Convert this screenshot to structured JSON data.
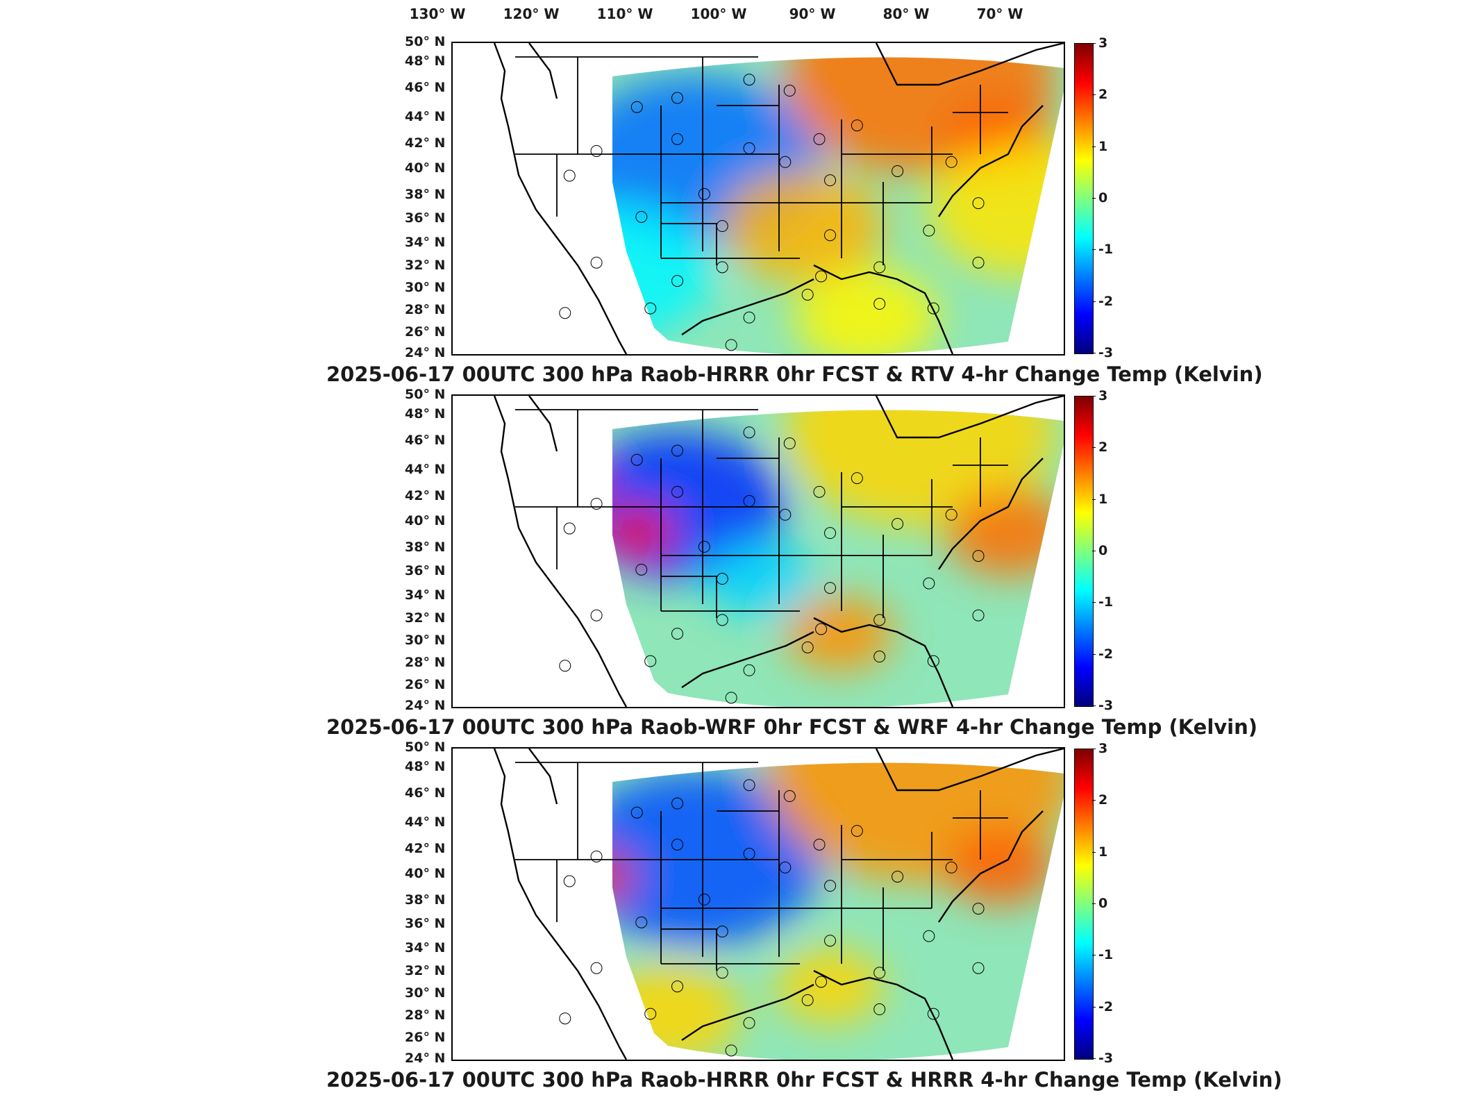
{
  "longitude_labels": [
    "130° W",
    "120° W",
    "110° W",
    "100° W",
    "90° W",
    "80° W",
    "70° W"
  ],
  "latitude_labels": [
    "50° N",
    "48° N",
    "46° N",
    "44° N",
    "42° N",
    "40° N",
    "38° N",
    "36° N",
    "34° N",
    "32° N",
    "30° N",
    "28° N",
    "26° N",
    "24° N"
  ],
  "colorbar": {
    "ticks": [
      "3",
      "2",
      "1",
      "0",
      "-1",
      "-2",
      "-3"
    ],
    "min": -3,
    "max": 3,
    "units": "Kelvin",
    "colormap": "jet"
  },
  "panels": [
    {
      "title": "2025-06-17 00UTC 300 hPa Raob-HRRR 0hr FCST & RTV 4-hr Change Temp (Kelvin)"
    },
    {
      "title": "2025-06-17 00UTC 300 hPa Raob-WRF 0hr FCST & WRF 4-hr Change Temp (Kelvin)"
    },
    {
      "title": "2025-06-17 00UTC 300 hPa Raob-HRRR 0hr FCST & HRRR 4-hr Change Temp (Kelvin)"
    }
  ],
  "colors": {
    "domain_base": "#8fe6b8",
    "outline": "#000000"
  }
}
